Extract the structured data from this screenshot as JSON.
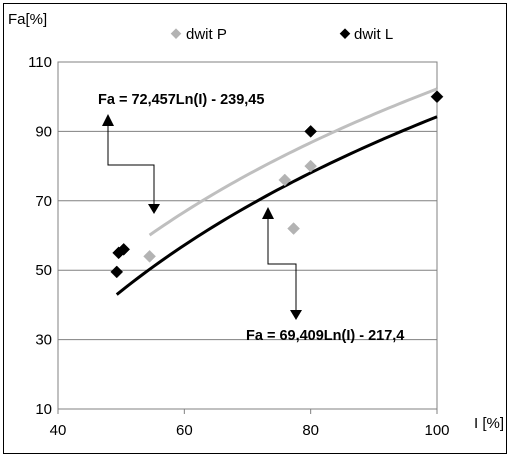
{
  "chart_data": {
    "type": "scatter",
    "ylabel": "Fa[%]",
    "xlabel": "I [%]",
    "xlim": [
      40,
      100
    ],
    "ylim": [
      10,
      110
    ],
    "xticks": [
      "40",
      "60",
      "80",
      "100"
    ],
    "yticks": [
      "10",
      "30",
      "50",
      "70",
      "90",
      "110"
    ],
    "grid": "horizontal",
    "legend": "top",
    "series": [
      {
        "name": "dwit P",
        "color": "#b3b3b3",
        "points": [
          [
            54.5,
            54
          ],
          [
            75.9,
            76
          ],
          [
            77.3,
            62
          ],
          [
            80,
            80
          ],
          [
            100,
            100
          ]
        ],
        "trendline": {
          "a": 69.409,
          "b": -217.4,
          "x_from": 54.5,
          "x_to": 100
        }
      },
      {
        "name": "dwit L",
        "color": "#000000",
        "points": [
          [
            49.3,
            49.5
          ],
          [
            49.6,
            55
          ],
          [
            50.4,
            56
          ],
          [
            80,
            90
          ],
          [
            100,
            100
          ]
        ],
        "trendline": {
          "a": 72.457,
          "b": -239.45,
          "x_from": 49.3,
          "x_to": 100
        }
      }
    ],
    "annotations": [
      "Fa = 72,457Ln(I) - 239,45",
      "Fa = 69,409Ln(I) - 217,4"
    ]
  }
}
